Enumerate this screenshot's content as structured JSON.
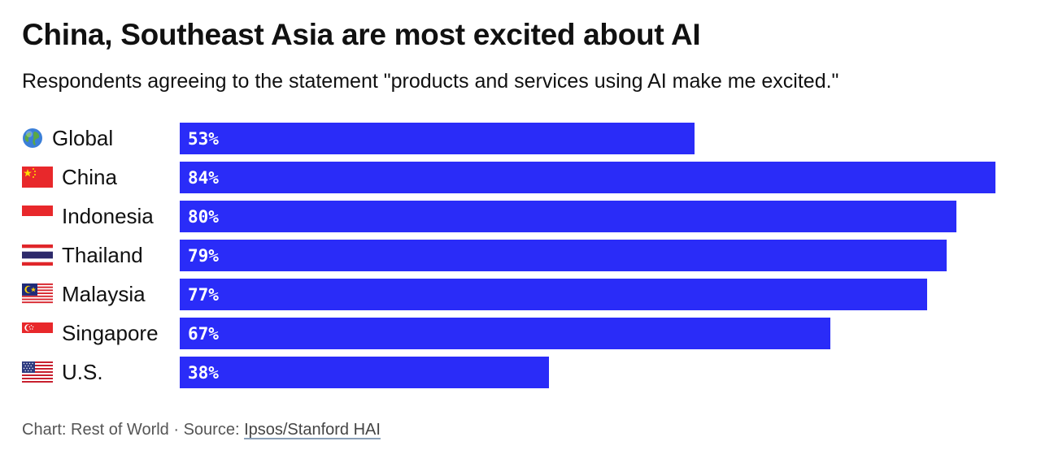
{
  "chart_data": {
    "type": "bar",
    "orientation": "horizontal",
    "title": "China, Southeast Asia are most excited about AI",
    "subtitle": "Respondents agreeing to the statement \"products and services using AI make me excited.\"",
    "categories": [
      "Global",
      "China",
      "Indonesia",
      "Thailand",
      "Malaysia",
      "Singapore",
      "U.S."
    ],
    "values": [
      53,
      84,
      80,
      79,
      77,
      67,
      38
    ],
    "value_labels": [
      "53%",
      "84%",
      "80%",
      "79%",
      "77%",
      "67%",
      "38%"
    ],
    "icons": [
      "globe-icon",
      "china-flag-icon",
      "indonesia-flag-icon",
      "thailand-flag-icon",
      "malaysia-flag-icon",
      "singapore-flag-icon",
      "us-flag-icon"
    ],
    "xlim": [
      0,
      84
    ],
    "bar_color": "#2a2cf8",
    "xlabel": "",
    "ylabel": ""
  },
  "footer": {
    "prefix": "Chart: Rest of World · Source: ",
    "source_link": "Ipsos/Stanford HAI"
  }
}
